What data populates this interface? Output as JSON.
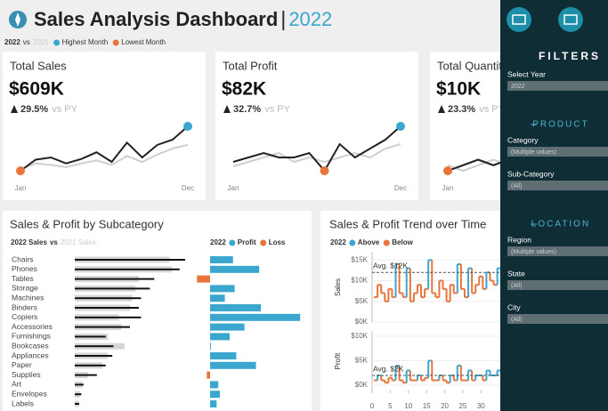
{
  "header": {
    "title": "Sales Analysis Dashboard",
    "year": "2022",
    "legend": {
      "current": "2022",
      "vs": "vs",
      "prior": "2021",
      "highest": "Highest Month",
      "lowest": "Lowest Month",
      "highest_color": "#3ba7cf",
      "lowest_color": "#e8743b"
    }
  },
  "kpis": [
    {
      "title": "Total Sales",
      "value": "$609K",
      "change": "29.5%",
      "vs": "vs PY",
      "sparkline": {
        "categories": [
          "Jan",
          null,
          null,
          null,
          null,
          null,
          null,
          null,
          null,
          null,
          null,
          "Dec"
        ],
        "current": [
          20,
          35,
          38,
          30,
          36,
          45,
          32,
          58,
          38,
          55,
          62,
          80
        ],
        "prior": [
          22,
          30,
          28,
          25,
          30,
          34,
          28,
          40,
          32,
          42,
          50,
          55
        ]
      }
    },
    {
      "title": "Total Profit",
      "value": "$82K",
      "change": "32.7%",
      "vs": "vs PY",
      "sparkline": {
        "categories": [
          "Jan",
          null,
          null,
          null,
          null,
          null,
          null,
          null,
          null,
          null,
          null,
          "Dec"
        ],
        "current": [
          5,
          6,
          7,
          6,
          6,
          7,
          3,
          9,
          6,
          8,
          10,
          13
        ],
        "prior": [
          4,
          5,
          6,
          7,
          5,
          6,
          5,
          6,
          7,
          6,
          8,
          9
        ]
      }
    },
    {
      "title": "Total Quantity",
      "value": "$10K",
      "change": "23.3%",
      "vs": "vs PY",
      "sparkline": {
        "categories": [
          "Jan",
          null,
          null,
          null,
          null,
          null,
          null,
          null,
          null,
          null,
          null,
          "Dec"
        ],
        "current": [
          0.5,
          0.6,
          0.7,
          0.6,
          0.7,
          0.8,
          0.7,
          0.9,
          0.8,
          1.0,
          1.1,
          1.3
        ],
        "prior": [
          0.6,
          0.5,
          0.6,
          0.7,
          0.6,
          0.7,
          0.8,
          0.7,
          0.8,
          0.9,
          0.9,
          1.0
        ]
      }
    }
  ],
  "subcategory_chart": {
    "title": "Sales & Profit by Subcategory",
    "sales_legend": {
      "current": "2022 Sales",
      "vs": "vs",
      "prior": "2021 Sales"
    },
    "profit_legend": {
      "year": "2022",
      "profit": "Profit",
      "loss": "Loss"
    },
    "profit_color": "#3ba7cf",
    "loss_color": "#e8743b",
    "categories": [
      "Chairs",
      "Phones",
      "Tables",
      "Storage",
      "Machines",
      "Binders",
      "Copiers",
      "Accessories",
      "Furnishings",
      "Bookcases",
      "Appliances",
      "Paper",
      "Supplies",
      "Art",
      "Envelopes",
      "Labels"
    ],
    "sales_2022": [
      100,
      95,
      72,
      68,
      60,
      58,
      60,
      50,
      28,
      35,
      34,
      28,
      20,
      8,
      6,
      4
    ],
    "sales_2021": [
      86,
      88,
      58,
      55,
      52,
      50,
      40,
      42,
      30,
      45,
      30,
      25,
      12,
      7,
      5,
      4
    ],
    "profit": [
      14,
      30,
      -8,
      15,
      9,
      31,
      55,
      21,
      12,
      0.5,
      16,
      28,
      -2,
      5,
      6,
      4
    ]
  },
  "trend_chart": {
    "title": "Sales & Profit Trend over Time",
    "legend": {
      "year": "2022",
      "above": "Above",
      "below": "Below"
    },
    "above_color": "#3ba7cf",
    "below_color": "#e8743b",
    "x": [
      1,
      2,
      3,
      4,
      5,
      6,
      7,
      8,
      9,
      10,
      11,
      12,
      13,
      14,
      15,
      16,
      17,
      18,
      19,
      20,
      21,
      22,
      23,
      24,
      25,
      26,
      27,
      28,
      29,
      30,
      31,
      32,
      33,
      34,
      35
    ],
    "xlim": [
      0,
      52
    ],
    "xticks": [
      0,
      5,
      10,
      15,
      20,
      25,
      30
    ],
    "sales": {
      "axis_label": "Sales",
      "ylim": [
        0,
        17
      ],
      "yticks": [
        {
          "value": 0,
          "label": "$0K"
        },
        {
          "value": 5,
          "label": "$5K"
        },
        {
          "value": 10,
          "label": "$10K"
        },
        {
          "value": 15,
          "label": "$15K"
        }
      ],
      "average": 12,
      "average_label": "Avg. $12K",
      "values": [
        6,
        9,
        7,
        5,
        8,
        6,
        14,
        7,
        6,
        13,
        5,
        7,
        9,
        6,
        8,
        15,
        7,
        6,
        10,
        8,
        5,
        9,
        7,
        14,
        8,
        6,
        13,
        7,
        9,
        11,
        8,
        12,
        10,
        9,
        13
      ]
    },
    "profit": {
      "axis_label": "Profit",
      "ylim": [
        -1,
        11
      ],
      "yticks": [
        {
          "value": 0,
          "label": "$0K"
        },
        {
          "value": 5,
          "label": "$5K"
        },
        {
          "value": 10,
          "label": "$10K"
        }
      ],
      "average": 2,
      "average_label": "Avg. $2K",
      "values": [
        1,
        2,
        1,
        0.5,
        1.5,
        1,
        4,
        1,
        0.5,
        3,
        1,
        1,
        2,
        1,
        1.5,
        5,
        1,
        1,
        2,
        1,
        0.5,
        2,
        1,
        4,
        1,
        1,
        3,
        1,
        2,
        2,
        1,
        3,
        2,
        2,
        3
      ]
    }
  },
  "filters": {
    "title": "FILTERS",
    "groups": [
      {
        "title": null,
        "fields": [
          {
            "label": "Select Year",
            "value": "2022"
          }
        ]
      },
      {
        "title": "PRODUCT",
        "fields": [
          {
            "label": "Category",
            "value": "(Multiple values)"
          },
          {
            "label": "Sub-Category",
            "value": "(All)"
          }
        ]
      },
      {
        "title": "LOCATION",
        "fields": [
          {
            "label": "Region",
            "value": "(Multiple values)"
          },
          {
            "label": "State",
            "value": "(All)"
          },
          {
            "label": "City",
            "value": "(All)"
          }
        ]
      }
    ]
  }
}
